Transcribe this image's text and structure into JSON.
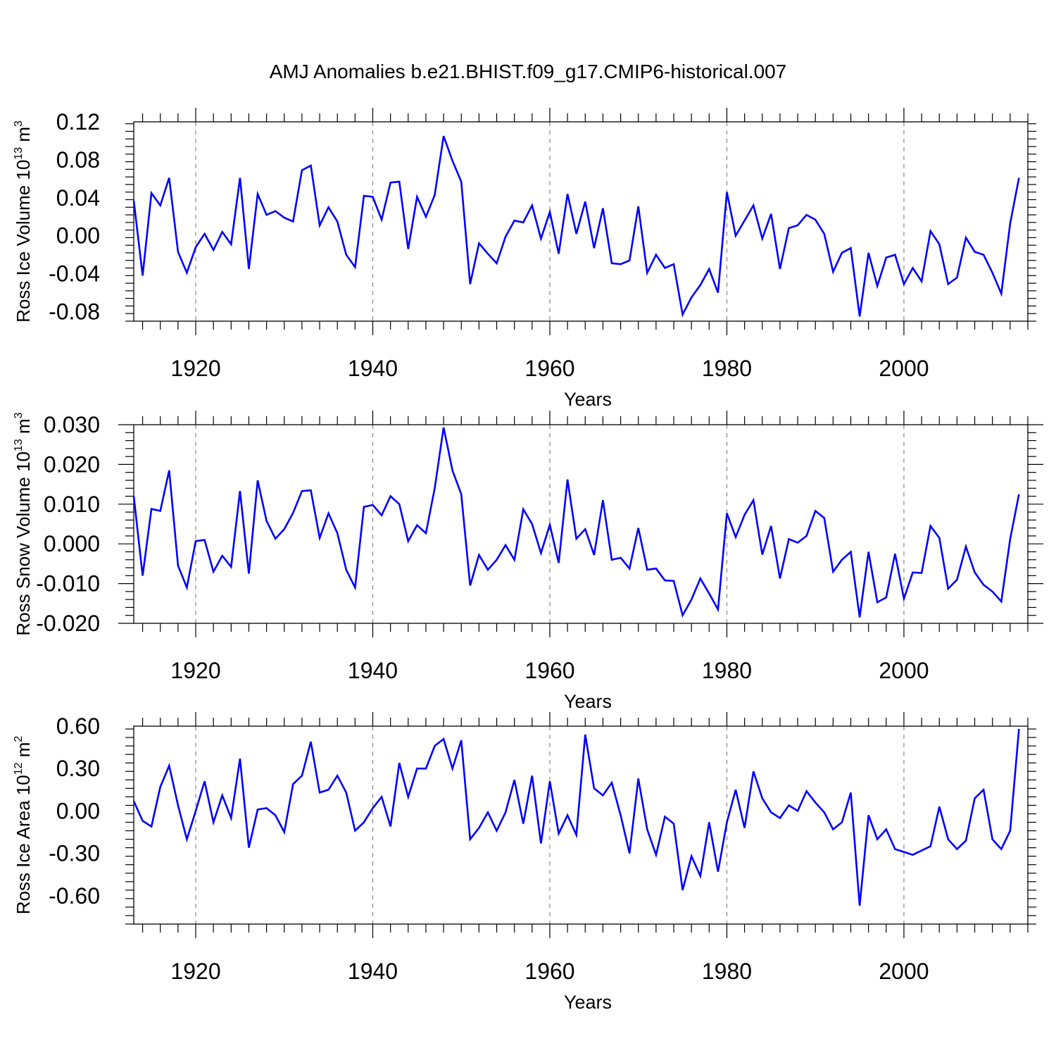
{
  "title": "AMJ Anomalies b.e21.BHIST.f09_g17.CMIP6-historical.007",
  "line_color": "#0000ff",
  "chart_data": [
    {
      "type": "line",
      "ylabel": {
        "text": "Ross Ice Volume 10",
        "exponent": "13",
        "unit": " m",
        "unit_exponent": "3"
      },
      "xlabel": "Years",
      "xlim": [
        1913,
        2014
      ],
      "ylim": [
        -0.09,
        0.12
      ],
      "xticks": [
        1920,
        1940,
        1960,
        1980,
        2000
      ],
      "yticks": [
        -0.08,
        -0.04,
        0.0,
        0.04,
        0.08,
        0.12
      ],
      "ytick_labels": [
        "-0.08",
        "-0.04",
        "0.00",
        "0.04",
        "0.08",
        "0.12"
      ],
      "x_start": 1913,
      "series": [
        {
          "name": "Ross Ice Volume",
          "values": [
            0.037,
            -0.042,
            0.045,
            0.032,
            0.061,
            -0.017,
            -0.039,
            -0.012,
            0.002,
            -0.015,
            0.004,
            -0.009,
            0.061,
            -0.035,
            0.044,
            0.022,
            0.026,
            0.019,
            0.015,
            0.069,
            0.074,
            0.011,
            0.03,
            0.015,
            -0.02,
            -0.033,
            0.042,
            0.041,
            0.017,
            0.056,
            0.057,
            -0.014,
            0.041,
            0.02,
            0.043,
            0.105,
            0.079,
            0.057,
            -0.051,
            -0.008,
            -0.019,
            -0.029,
            -0.001,
            0.016,
            0.014,
            0.032,
            -0.003,
            0.025,
            -0.019,
            0.044,
            0.002,
            0.036,
            -0.013,
            0.029,
            -0.029,
            -0.03,
            -0.026,
            0.031,
            -0.039,
            -0.02,
            -0.034,
            -0.03,
            -0.083,
            -0.065,
            -0.052,
            -0.035,
            -0.06,
            0.046,
            0.0,
            0.016,
            0.032,
            -0.003,
            0.023,
            -0.035,
            0.008,
            0.011,
            0.022,
            0.017,
            0.002,
            -0.038,
            -0.018,
            -0.013,
            -0.085,
            -0.018,
            -0.053,
            -0.023,
            -0.02,
            -0.051,
            -0.034,
            -0.048,
            0.005,
            -0.009,
            -0.051,
            -0.044,
            -0.002,
            -0.017,
            -0.02,
            -0.039,
            -0.061,
            0.013,
            0.061
          ]
        }
      ]
    },
    {
      "type": "line",
      "ylabel": {
        "text": "Ross Snow Volume 10",
        "exponent": "13",
        "unit": " m",
        "unit_exponent": "3"
      },
      "xlabel": "Years",
      "xlim": [
        1913,
        2014
      ],
      "ylim": [
        -0.02,
        0.03
      ],
      "xticks": [
        1920,
        1940,
        1960,
        1980,
        2000
      ],
      "yticks": [
        -0.02,
        -0.01,
        0.0,
        0.01,
        0.02,
        0.03
      ],
      "ytick_labels": [
        "-0.020",
        "-0.010",
        "0.000",
        "0.010",
        "0.020",
        "0.030"
      ],
      "x_start": 1913,
      "series": [
        {
          "name": "Ross Snow Volume",
          "values": [
            0.012,
            -0.008,
            0.0088,
            0.0083,
            0.0185,
            -0.0055,
            -0.011,
            0.0007,
            0.001,
            -0.007,
            -0.003,
            -0.0058,
            0.0133,
            -0.0075,
            0.016,
            0.0058,
            0.0013,
            0.0037,
            0.0078,
            0.0133,
            0.0135,
            0.0015,
            0.0077,
            0.0027,
            -0.0065,
            -0.011,
            0.0093,
            0.0098,
            0.0072,
            0.012,
            0.01,
            0.0007,
            0.0047,
            0.0027,
            0.014,
            0.0293,
            0.0185,
            0.0125,
            -0.0105,
            -0.0028,
            -0.0065,
            -0.004,
            -0.0003,
            -0.004,
            0.0087,
            0.005,
            -0.0023,
            0.0048,
            -0.0048,
            0.0162,
            0.0013,
            0.0037,
            -0.0028,
            0.011,
            -0.004,
            -0.0035,
            -0.0062,
            0.004,
            -0.0065,
            -0.0062,
            -0.0092,
            -0.0093,
            -0.018,
            -0.014,
            -0.0087,
            -0.0125,
            -0.0165,
            0.0077,
            0.0017,
            0.0073,
            0.011,
            -0.0027,
            0.0045,
            -0.0087,
            0.0012,
            0.0003,
            0.002,
            0.0083,
            0.0065,
            -0.007,
            -0.004,
            -0.002,
            -0.0185,
            -0.002,
            -0.0147,
            -0.0135,
            -0.0025,
            -0.0138,
            -0.0072,
            -0.0073,
            0.0045,
            0.0015,
            -0.0113,
            -0.009,
            -0.0007,
            -0.0072,
            -0.0103,
            -0.012,
            -0.0145,
            0.0012,
            0.0125
          ]
        }
      ]
    },
    {
      "type": "line",
      "ylabel": {
        "text": "Ross Ice Area 10",
        "exponent": "12",
        "unit": " m",
        "unit_exponent": "2"
      },
      "xlabel": "Years",
      "xlim": [
        1913,
        2014
      ],
      "ylim": [
        -0.8,
        0.6
      ],
      "xticks": [
        1920,
        1940,
        1960,
        1980,
        2000
      ],
      "yticks": [
        -0.6,
        -0.3,
        0.0,
        0.3,
        0.6
      ],
      "ytick_labels": [
        "-0.60",
        "-0.30",
        "0.00",
        "0.30",
        "0.60"
      ],
      "x_start": 1913,
      "series": [
        {
          "name": "Ross Ice Area",
          "values": [
            0.07,
            -0.07,
            -0.11,
            0.17,
            0.32,
            0.04,
            -0.2,
            0.0,
            0.21,
            -0.08,
            0.11,
            -0.05,
            0.37,
            -0.26,
            0.01,
            0.02,
            -0.03,
            -0.15,
            0.19,
            0.25,
            0.49,
            0.13,
            0.15,
            0.25,
            0.13,
            -0.14,
            -0.08,
            0.02,
            0.1,
            -0.11,
            0.34,
            0.1,
            0.3,
            0.3,
            0.46,
            0.51,
            0.3,
            0.5,
            -0.2,
            -0.12,
            -0.01,
            -0.14,
            -0.01,
            0.22,
            -0.09,
            0.25,
            -0.23,
            0.21,
            -0.16,
            -0.03,
            -0.17,
            0.54,
            0.16,
            0.11,
            0.2,
            -0.03,
            -0.3,
            0.23,
            -0.13,
            -0.31,
            -0.04,
            -0.09,
            -0.56,
            -0.32,
            -0.46,
            -0.08,
            -0.43,
            -0.08,
            0.15,
            -0.12,
            0.28,
            0.09,
            -0.01,
            -0.05,
            0.04,
            0.0,
            0.14,
            0.06,
            -0.01,
            -0.13,
            -0.08,
            0.13,
            -0.67,
            -0.03,
            -0.2,
            -0.13,
            -0.27,
            -0.29,
            -0.31,
            -0.28,
            -0.25,
            0.03,
            -0.2,
            -0.27,
            -0.21,
            0.09,
            0.15,
            -0.2,
            -0.27,
            -0.14,
            0.58
          ]
        }
      ]
    }
  ]
}
